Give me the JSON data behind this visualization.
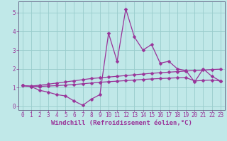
{
  "title": "",
  "xlabel": "Windchill (Refroidissement éolien,°C)",
  "ylabel": "",
  "bg_color": "#c0e8e8",
  "line_color": "#993399",
  "grid_color": "#99cccc",
  "xlim": [
    -0.5,
    23.5
  ],
  "ylim": [
    -0.2,
    5.6
  ],
  "xticks": [
    0,
    1,
    2,
    3,
    4,
    5,
    6,
    7,
    8,
    9,
    10,
    11,
    12,
    13,
    14,
    15,
    16,
    17,
    18,
    19,
    20,
    21,
    22,
    23
  ],
  "yticks": [
    0,
    1,
    2,
    3,
    4,
    5
  ],
  "series1_y": [
    1.1,
    1.05,
    0.85,
    0.75,
    0.62,
    0.55,
    0.28,
    0.05,
    0.38,
    0.62,
    3.9,
    2.4,
    5.2,
    3.7,
    3.0,
    3.3,
    2.3,
    2.4,
    2.0,
    1.9,
    1.3,
    2.0,
    1.6,
    1.35
  ],
  "series2_y": [
    1.1,
    1.08,
    1.12,
    1.18,
    1.24,
    1.3,
    1.36,
    1.42,
    1.48,
    1.52,
    1.56,
    1.6,
    1.64,
    1.68,
    1.72,
    1.76,
    1.79,
    1.82,
    1.85,
    1.88,
    1.91,
    1.93,
    1.96,
    1.98
  ],
  "series3_y": [
    1.1,
    1.06,
    1.06,
    1.08,
    1.1,
    1.13,
    1.16,
    1.2,
    1.24,
    1.28,
    1.31,
    1.34,
    1.37,
    1.4,
    1.43,
    1.46,
    1.48,
    1.5,
    1.52,
    1.53,
    1.35,
    1.38,
    1.4,
    1.35
  ],
  "x": [
    0,
    1,
    2,
    3,
    4,
    5,
    6,
    7,
    8,
    9,
    10,
    11,
    12,
    13,
    14,
    15,
    16,
    17,
    18,
    19,
    20,
    21,
    22,
    23
  ],
  "markersize": 2.5,
  "linewidth": 0.9,
  "tick_fontsize": 5.5,
  "xlabel_fontsize": 6.5
}
